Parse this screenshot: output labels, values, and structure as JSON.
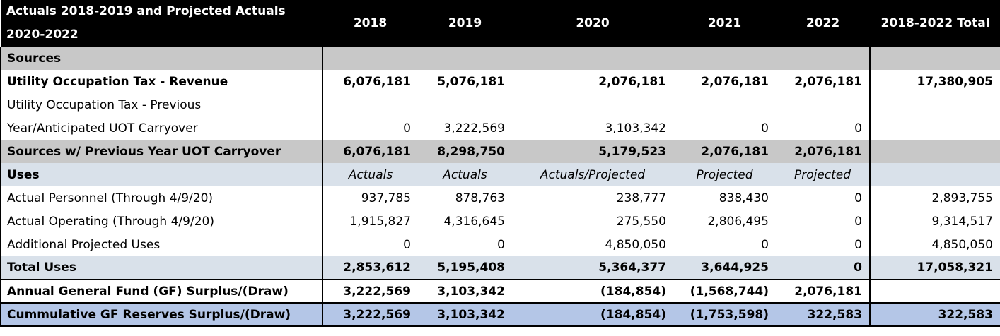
{
  "header": {
    "title": "Actuals 2018-2019 and Projected Actuals 2020-2022",
    "years": [
      "2018",
      "2019",
      "2020",
      "2021",
      "2022"
    ],
    "total": "2018-2022 Total"
  },
  "rows": {
    "sources": {
      "label": "Sources"
    },
    "uot_revenue": {
      "label": "Utility Occupation Tax - Revenue",
      "values": [
        "6,076,181",
        "5,076,181",
        "2,076,181",
        "2,076,181",
        "2,076,181"
      ],
      "total": "17,380,905"
    },
    "uot_previous": {
      "label_line1": "Utility Occupation Tax - Previous",
      "label_line2": "Year/Anticipated UOT Carryover",
      "values": [
        "0",
        "3,222,569",
        "3,103,342",
        "0",
        "0"
      ],
      "total": ""
    },
    "sources_carryover": {
      "label": "Sources w/ Previous Year UOT Carryover",
      "values": [
        "6,076,181",
        "8,298,750",
        "5,179,523",
        "2,076,181",
        "2,076,181"
      ],
      "total": ""
    },
    "uses": {
      "label": "Uses",
      "values": [
        "Actuals",
        "Actuals",
        "Actuals/Projected",
        "Projected",
        "Projected"
      ]
    },
    "personnel": {
      "label": "Actual Personnel (Through 4/9/20)",
      "values": [
        "937,785",
        "878,763",
        "238,777",
        "838,430",
        "0"
      ],
      "total": "2,893,755"
    },
    "operating": {
      "label": "Actual Operating (Through 4/9/20)",
      "values": [
        "1,915,827",
        "4,316,645",
        "275,550",
        "2,806,495",
        "0"
      ],
      "total": "9,314,517"
    },
    "additional": {
      "label": "Additional Projected Uses",
      "values": [
        "0",
        "0",
        "4,850,050",
        "0",
        "0"
      ],
      "total": "4,850,050"
    },
    "total_uses": {
      "label": "Total Uses",
      "values": [
        "2,853,612",
        "5,195,408",
        "5,364,377",
        "3,644,925",
        "0"
      ],
      "total": "17,058,321"
    },
    "annual_gf": {
      "label": "Annual General Fund (GF) Surplus/(Draw)",
      "values": [
        "3,222,569",
        "3,103,342",
        "(184,854)",
        "(1,568,744)",
        "2,076,181"
      ],
      "total": ""
    },
    "cumulative_gf": {
      "label": "Cummulative GF Reserves Surplus/(Draw)",
      "values": [
        "3,222,569",
        "3,103,342",
        "(184,854)",
        "(1,753,598)",
        "322,583"
      ],
      "total": "322,583"
    }
  }
}
